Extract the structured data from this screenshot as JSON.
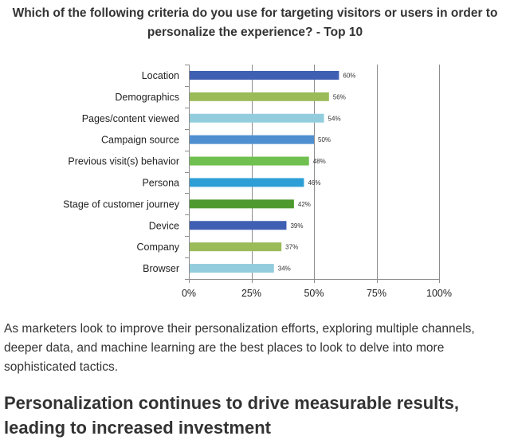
{
  "chart_data": {
    "type": "bar",
    "orientation": "horizontal",
    "title_lines": [
      "Which of the following criteria do you use for targeting visitors or users in order to",
      "personalize the experience? - Top 10"
    ],
    "categories": [
      "Location",
      "Demographics",
      "Pages/content viewed",
      "Campaign source",
      "Previous visit(s) behavior",
      "Persona",
      "Stage of customer journey",
      "Device",
      "Company",
      "Browser"
    ],
    "values": [
      60,
      56,
      54,
      50,
      48,
      46,
      42,
      39,
      37,
      34
    ],
    "value_labels": [
      "60%",
      "56%",
      "54%",
      "50%",
      "48%",
      "46%",
      "42%",
      "39%",
      "37%",
      "34%"
    ],
    "bar_colors": [
      "#3f5fb3",
      "#9bbb59",
      "#93cddd",
      "#4f8fd0",
      "#70c050",
      "#2e9fd6",
      "#4e9a2e",
      "#3f5fb3",
      "#9bbb59",
      "#93cddd"
    ],
    "xlim": [
      0,
      100
    ],
    "xticks": [
      0,
      25,
      50,
      75,
      100
    ],
    "xtick_labels": [
      "0%",
      "25%",
      "50%",
      "75%",
      "100%"
    ],
    "xlabel": "",
    "ylabel": "",
    "grid": true
  },
  "article": {
    "paragraph": "As marketers look to improve their personalization efforts, exploring multiple channels, deeper data, and machine learning are the best places to look to delve into more sophisticated tactics.",
    "heading": "Personalization continues to drive measurable results, leading to increased investment"
  }
}
